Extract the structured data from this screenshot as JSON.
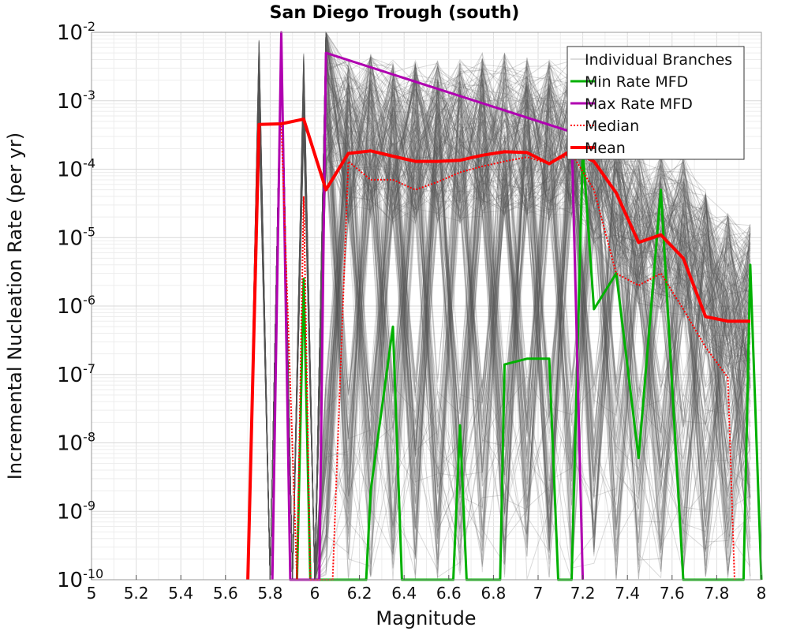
{
  "chart_data": {
    "type": "line",
    "title": "San Diego Trough (south)",
    "xlabel": "Magnitude",
    "ylabel": "Incremental Nucleation Rate (per yr)",
    "xlim": [
      5,
      8
    ],
    "ylim": [
      1e-10,
      0.01
    ],
    "yscale": "log",
    "grid": true,
    "legend_position": "top-right",
    "x_ticks": [
      "5",
      "5.2",
      "5.4",
      "5.6",
      "5.8",
      "6",
      "6.2",
      "6.4",
      "6.6",
      "6.8",
      "7",
      "7.2",
      "7.4",
      "7.6",
      "7.8",
      "8"
    ],
    "x_tick_values": [
      5,
      5.2,
      5.4,
      5.6,
      5.8,
      6,
      6.2,
      6.4,
      6.6,
      6.8,
      7,
      7.2,
      7.4,
      7.6,
      7.8,
      8
    ],
    "y_ticks": [
      {
        "base": "10",
        "exp": "-10",
        "value": -10
      },
      {
        "base": "10",
        "exp": "-9",
        "value": -9
      },
      {
        "base": "10",
        "exp": "-8",
        "value": -8
      },
      {
        "base": "10",
        "exp": "-7",
        "value": -7
      },
      {
        "base": "10",
        "exp": "-6",
        "value": -6
      },
      {
        "base": "10",
        "exp": "-5",
        "value": -5
      },
      {
        "base": "10",
        "exp": "-4",
        "value": -4
      },
      {
        "base": "10",
        "exp": "-3",
        "value": -3
      },
      {
        "base": "10",
        "exp": "-2",
        "value": -2
      }
    ],
    "legend": [
      {
        "label": "Individual Branches",
        "color": "#b8b8b8",
        "style": "thin"
      },
      {
        "label": "Min Rate MFD",
        "color": "#00b000",
        "style": "solid"
      },
      {
        "label": "Max Rate MFD",
        "color": "#b000b0",
        "style": "solid"
      },
      {
        "label": "Median",
        "color": "#ff0000",
        "style": "dotted"
      },
      {
        "label": "Mean",
        "color": "#ff0000",
        "style": "thick"
      }
    ],
    "series": [
      {
        "name": "Mean",
        "color": "#ff0000",
        "x": [
          5.7,
          5.75,
          5.85,
          5.95,
          6.05,
          6.15,
          6.25,
          6.35,
          6.45,
          6.55,
          6.65,
          6.75,
          6.85,
          6.95,
          7.05,
          7.15,
          7.25,
          7.35,
          7.45,
          7.55,
          7.65,
          7.75,
          7.85,
          7.95
        ],
        "y": [
          1e-10,
          0.00045,
          0.00046,
          0.00054,
          5e-05,
          0.00017,
          0.000185,
          0.000155,
          0.00013,
          0.00013,
          0.000135,
          0.00016,
          0.00018,
          0.000175,
          0.00012,
          0.00019,
          0.00013,
          4.5e-05,
          8.5e-06,
          1.1e-05,
          5e-06,
          7e-07,
          6e-07,
          6e-07
        ]
      },
      {
        "name": "Median",
        "color": "#ff0000",
        "x": [
          5.7,
          5.75,
          5.85,
          5.92,
          5.95,
          5.98,
          6.08,
          6.15,
          6.25,
          6.35,
          6.45,
          6.55,
          6.65,
          6.75,
          6.85,
          6.95,
          7.05,
          7.15,
          7.25,
          7.35,
          7.45,
          7.55,
          7.65,
          7.75,
          7.85,
          7.88
        ],
        "y": [
          1e-10,
          0.00045,
          0.00046,
          1e-10,
          4e-05,
          1e-10,
          1e-10,
          0.00013,
          7e-05,
          7e-05,
          5e-05,
          6.5e-05,
          9e-05,
          0.00011,
          0.00013,
          0.00015,
          0.00012,
          0.00017,
          5e-05,
          3e-06,
          2e-06,
          3e-06,
          9e-07,
          2.5e-07,
          9e-08,
          1e-10
        ]
      },
      {
        "name": "Max Rate MFD",
        "color": "#b000b0",
        "x": [
          5.81,
          5.85,
          5.89,
          6.02,
          6.05,
          7.15,
          7.2
        ],
        "y": [
          1e-10,
          0.01,
          1e-10,
          1e-10,
          0.005,
          0.00035,
          1e-10
        ]
      },
      {
        "name": "Min Rate MFD",
        "color": "#00b000",
        "x": [
          5.92,
          5.95,
          5.98,
          6.23,
          6.25,
          6.35,
          6.39,
          6.62,
          6.65,
          6.68,
          6.83,
          6.85,
          6.95,
          7.05,
          7.09,
          7.15,
          7.2,
          7.25,
          7.35,
          7.45,
          7.55,
          7.65,
          7.78,
          7.92,
          7.95,
          8.0
        ],
        "y": [
          1e-10,
          2.5e-06,
          1e-10,
          1e-10,
          2e-09,
          5e-07,
          1e-10,
          1e-10,
          1.8e-08,
          1e-10,
          1e-10,
          1.4e-07,
          1.7e-07,
          1.7e-07,
          1e-10,
          1e-10,
          0.0002,
          9e-07,
          3e-06,
          6e-09,
          5e-05,
          1e-10,
          1e-10,
          1e-10,
          4e-06,
          1e-10
        ]
      }
    ]
  }
}
